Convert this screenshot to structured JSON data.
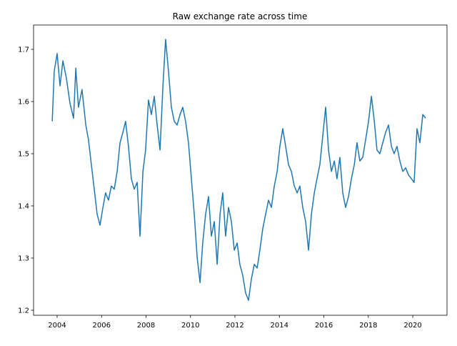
{
  "chart_data": {
    "type": "line",
    "title": "Raw exchange rate across time",
    "x": [
      2003.78,
      2003.87,
      2004.0,
      2004.13,
      2004.26,
      2004.42,
      2004.58,
      2004.74,
      2004.84,
      2004.96,
      2005.12,
      2005.29,
      2005.41,
      2005.54,
      2005.67,
      2005.8,
      2005.93,
      2006.06,
      2006.18,
      2006.31,
      2006.44,
      2006.57,
      2006.7,
      2006.83,
      2006.96,
      2007.08,
      2007.21,
      2007.34,
      2007.47,
      2007.6,
      2007.73,
      2007.86,
      2007.98,
      2008.11,
      2008.24,
      2008.37,
      2008.5,
      2008.63,
      2008.76,
      2008.88,
      2009.01,
      2009.14,
      2009.27,
      2009.4,
      2009.53,
      2009.65,
      2009.78,
      2009.91,
      2010.04,
      2010.17,
      2010.3,
      2010.43,
      2010.55,
      2010.68,
      2010.81,
      2010.94,
      2011.07,
      2011.2,
      2011.33,
      2011.45,
      2011.58,
      2011.71,
      2011.84,
      2011.97,
      2012.1,
      2012.22,
      2012.35,
      2012.48,
      2012.61,
      2012.74,
      2012.87,
      2013.0,
      2013.12,
      2013.25,
      2013.38,
      2013.51,
      2013.64,
      2013.77,
      2013.9,
      2014.02,
      2014.15,
      2014.28,
      2014.41,
      2014.54,
      2014.67,
      2014.8,
      2014.92,
      2015.05,
      2015.18,
      2015.31,
      2015.44,
      2015.57,
      2015.69,
      2015.82,
      2015.95,
      2016.08,
      2016.21,
      2016.34,
      2016.47,
      2016.59,
      2016.72,
      2016.85,
      2016.98,
      2017.11,
      2017.24,
      2017.37,
      2017.49,
      2017.62,
      2017.75,
      2017.88,
      2018.01,
      2018.14,
      2018.27,
      2018.39,
      2018.52,
      2018.65,
      2018.78,
      2018.91,
      2019.04,
      2019.16,
      2019.29,
      2019.42,
      2019.55,
      2019.68,
      2019.81,
      2019.94,
      2020.06,
      2020.19,
      2020.32,
      2020.45,
      2020.58
    ],
    "series": [
      {
        "color": "#1f77b4",
        "values": [
          1.562,
          1.658,
          1.692,
          1.63,
          1.678,
          1.644,
          1.596,
          1.568,
          1.664,
          1.589,
          1.623,
          1.555,
          1.527,
          1.479,
          1.432,
          1.384,
          1.363,
          1.397,
          1.425,
          1.411,
          1.438,
          1.432,
          1.466,
          1.521,
          1.541,
          1.562,
          1.514,
          1.452,
          1.432,
          1.445,
          1.342,
          1.466,
          1.507,
          1.603,
          1.575,
          1.61,
          1.555,
          1.507,
          1.63,
          1.719,
          1.658,
          1.589,
          1.562,
          1.555,
          1.575,
          1.589,
          1.562,
          1.521,
          1.452,
          1.384,
          1.301,
          1.253,
          1.329,
          1.384,
          1.418,
          1.342,
          1.37,
          1.288,
          1.384,
          1.425,
          1.342,
          1.397,
          1.37,
          1.315,
          1.329,
          1.288,
          1.267,
          1.233,
          1.219,
          1.26,
          1.288,
          1.281,
          1.315,
          1.356,
          1.384,
          1.411,
          1.397,
          1.438,
          1.466,
          1.514,
          1.548,
          1.514,
          1.479,
          1.466,
          1.438,
          1.425,
          1.438,
          1.397,
          1.37,
          1.315,
          1.384,
          1.425,
          1.452,
          1.479,
          1.534,
          1.589,
          1.507,
          1.466,
          1.486,
          1.452,
          1.493,
          1.425,
          1.397,
          1.418,
          1.452,
          1.479,
          1.521,
          1.486,
          1.493,
          1.527,
          1.562,
          1.61,
          1.562,
          1.507,
          1.5,
          1.521,
          1.541,
          1.555,
          1.514,
          1.5,
          1.514,
          1.486,
          1.466,
          1.473,
          1.459,
          1.452,
          1.445,
          1.548,
          1.521,
          1.575,
          1.568
        ]
      }
    ],
    "xlim": [
      2002.94,
      2021.54
    ],
    "xticks": [
      2004,
      2006,
      2008,
      2010,
      2012,
      2014,
      2016,
      2018,
      2020
    ],
    "ylim": [
      1.1904,
      1.7466
    ],
    "yticks": [
      1.2,
      1.3,
      1.4,
      1.5,
      1.6,
      1.7
    ]
  }
}
